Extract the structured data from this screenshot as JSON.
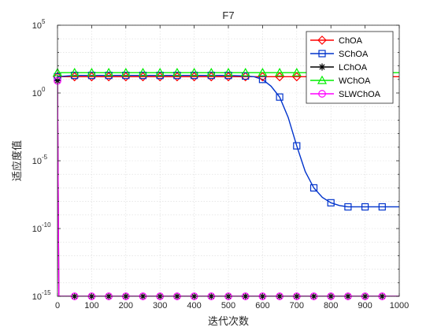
{
  "chart_data": {
    "type": "line",
    "title": "F7",
    "xlabel": "迭代次数",
    "ylabel": "适应度值",
    "xlim": [
      0,
      1000
    ],
    "ylim_log10": [
      -15,
      5
    ],
    "yscale": "log",
    "grid": true,
    "legend_position": "top-right",
    "x_ticks": [
      0,
      100,
      200,
      300,
      400,
      500,
      600,
      700,
      800,
      900,
      1000
    ],
    "x_tick_labels": [
      "0",
      "100",
      "200",
      "300",
      "400",
      "500",
      "600",
      "700",
      "800",
      "900",
      "1000"
    ],
    "y_ticks_log10": [
      -15,
      -10,
      -5,
      0,
      5
    ],
    "y_tick_bases": [
      "10",
      "10",
      "10",
      "10",
      "10"
    ],
    "y_tick_exponents": [
      "-15",
      "-10",
      "-5",
      "0",
      "5"
    ],
    "marker_every": 50,
    "series": [
      {
        "name": "ChOA",
        "color": "#ff0000",
        "marker": "diamond",
        "x": [
          0,
          1000
        ],
        "y_log10": [
          1.2,
          1.2
        ]
      },
      {
        "name": "SChOA",
        "color": "#0033cc",
        "marker": "square",
        "x": [
          0,
          50,
          100,
          150,
          200,
          250,
          300,
          350,
          400,
          450,
          500,
          550,
          575,
          600,
          625,
          650,
          675,
          700,
          725,
          750,
          775,
          800,
          825,
          850,
          900,
          950,
          1000
        ],
        "y_log10": [
          1.2,
          1.3,
          1.3,
          1.3,
          1.3,
          1.3,
          1.3,
          1.3,
          1.3,
          1.3,
          1.3,
          1.25,
          1.2,
          1.0,
          0.5,
          -0.3,
          -1.8,
          -3.9,
          -5.8,
          -7.0,
          -7.7,
          -8.1,
          -8.3,
          -8.4,
          -8.4,
          -8.4,
          -8.4
        ]
      },
      {
        "name": "LChOA",
        "color": "#000000",
        "marker": "asterisk",
        "x": [
          0,
          4,
          1000
        ],
        "y_log10": [
          0.9,
          -15,
          -15
        ]
      },
      {
        "name": "WChOA",
        "color": "#00ee00",
        "marker": "triangle",
        "x": [
          0,
          1000
        ],
        "y_log10": [
          1.5,
          1.5
        ]
      },
      {
        "name": "SLWChOA",
        "color": "#ff00ff",
        "marker": "circle",
        "x": [
          0,
          4,
          1000
        ],
        "y_log10": [
          0.9,
          -15,
          -15
        ]
      }
    ]
  }
}
